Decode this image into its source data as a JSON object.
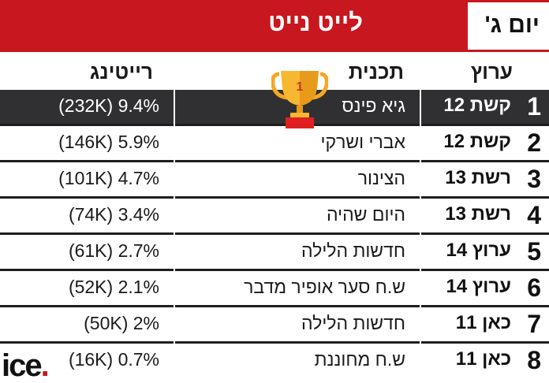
{
  "header": {
    "day": "יום ג'",
    "title": "לייט נייט"
  },
  "columns": {
    "channel": "ערוץ",
    "show": "תכנית",
    "rating": "רייטינג"
  },
  "trophy": {
    "rank_label": "1"
  },
  "rows": [
    {
      "rank": "1",
      "channel": "קשת 12",
      "show": "גיא פינס",
      "rating": "(232K) 9.4%",
      "highlighted": true
    },
    {
      "rank": "2",
      "channel": "קשת 12",
      "show": "אברי ושרקי",
      "rating": "(146K) 5.9%"
    },
    {
      "rank": "3",
      "channel": "רשת 13",
      "show": "הצינור",
      "rating": "(101K) 4.7%"
    },
    {
      "rank": "4",
      "channel": "רשת 13",
      "show": "היום שהיה",
      "rating": "(74K) 3.4%"
    },
    {
      "rank": "5",
      "channel": "ערוץ 14",
      "show": "חדשות הלילה",
      "rating": "(61K) 2.7%"
    },
    {
      "rank": "6",
      "channel": "ערוץ 14",
      "show": "ש.ח סער אופיר מדבר",
      "rating": "(52K) 2.1%"
    },
    {
      "rank": "7",
      "channel": "כאן 11",
      "show": "חדשות הלילה",
      "rating": "(50K) 2%"
    },
    {
      "rank": "8",
      "channel": "כאן 11",
      "show": "ש.ח מחוננת",
      "rating": "(16K) 0.7%"
    }
  ],
  "logo": {
    "text": "ice",
    "dot": "."
  },
  "colors": {
    "brand_red": "#c8171e",
    "highlight_row": "#303033",
    "trophy_gold": "#f5a623"
  }
}
